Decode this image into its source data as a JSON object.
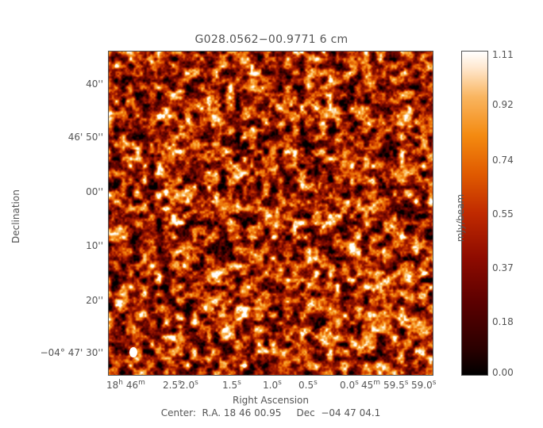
{
  "title": "G028.0562−00.9771 6 cm",
  "y_ticks": [
    "40''",
    "46' 50''",
    "00''",
    "10''",
    "20''",
    "−04° 47' 30''"
  ],
  "x_ticks": [
    {
      "base": "18",
      "sup": "h",
      "mid": " 46",
      "sup2": "m"
    },
    {
      "base": "2.5",
      "sup": "s"
    },
    {
      "base": "2.0",
      "sup": "s"
    },
    {
      "base": "1.5",
      "sup": "s"
    },
    {
      "base": "1.0",
      "sup": "s"
    },
    {
      "base": "0.5",
      "sup": "s"
    },
    {
      "base": "0.0",
      "sup": "s"
    },
    {
      "base": "45",
      "sup": "m"
    },
    {
      "base": "59.5",
      "sup": "s"
    },
    {
      "base": "59.0",
      "sup": "s"
    }
  ],
  "ylabel": "Declination",
  "xlabel": "Right Ascension",
  "center_text": "Center:  R.A. 18 46 00.95     Dec  −04 47 04.1",
  "colorbar": {
    "label": "mJy/beam",
    "ticks": [
      "1.11",
      "0.92",
      "0.74",
      "0.55",
      "0.37",
      "0.18",
      "0.00"
    ]
  }
}
